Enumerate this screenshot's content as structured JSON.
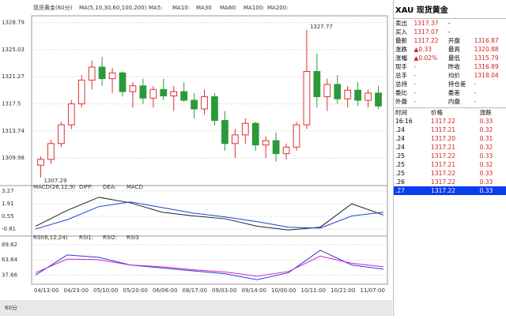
{
  "chart_data": [
    {
      "type": "candlestick",
      "title": "现货黄金(60分)",
      "ma_labels": [
        "MA(5,10,30,60,100,200)",
        "MA5:",
        "MA10:",
        "MA30",
        "MA60:",
        "MA100:",
        "MA200:"
      ],
      "ma_colors": [
        "#000",
        "#000",
        "#00f",
        "#f0f",
        "#f80",
        "#888",
        "#f00"
      ],
      "open": [
        1309.0,
        1309.8,
        1312.0,
        1314.6,
        1317.5,
        1320.8,
        1322.6,
        1321.0,
        1321.8,
        1319.2,
        1320.0,
        1318.3,
        1319.5,
        1318.6,
        1319.2,
        1318.0,
        1316.8,
        1318.5,
        1315.2,
        1312.0,
        1313.2,
        1314.8,
        1311.8,
        1312.4,
        1310.6,
        1311.5,
        1314.6,
        1322.0,
        1318.5,
        1320.2,
        1318.2,
        1319.4,
        1318.0,
        1319.0
      ],
      "high": [
        1310.2,
        1312.5,
        1315.0,
        1318.0,
        1321.5,
        1323.5,
        1324.0,
        1322.5,
        1322.0,
        1320.5,
        1321.0,
        1320.0,
        1321.0,
        1320.0,
        1320.5,
        1319.0,
        1319.5,
        1319.0,
        1316.5,
        1314.0,
        1315.5,
        1315.0,
        1313.0,
        1313.5,
        1312.0,
        1315.0,
        1327.77,
        1324.5,
        1321.0,
        1321.5,
        1320.0,
        1320.5,
        1319.5,
        1320.0
      ],
      "low": [
        1307.29,
        1309.2,
        1311.5,
        1314.0,
        1317.0,
        1319.5,
        1320.0,
        1319.0,
        1318.5,
        1317.0,
        1317.5,
        1317.0,
        1318.0,
        1316.5,
        1317.8,
        1315.5,
        1316.0,
        1314.5,
        1311.0,
        1310.0,
        1312.0,
        1311.0,
        1310.0,
        1309.5,
        1309.8,
        1311.0,
        1314.0,
        1317.0,
        1316.5,
        1317.5,
        1317.0,
        1317.2,
        1317.0,
        1316.8
      ],
      "close": [
        1309.8,
        1312.0,
        1314.6,
        1317.5,
        1320.8,
        1322.6,
        1321.0,
        1321.8,
        1319.2,
        1320.0,
        1318.3,
        1319.5,
        1318.6,
        1319.2,
        1318.0,
        1316.8,
        1318.5,
        1315.2,
        1312.0,
        1313.2,
        1314.8,
        1311.8,
        1312.4,
        1310.6,
        1311.5,
        1314.6,
        1322.0,
        1318.5,
        1320.2,
        1318.2,
        1319.4,
        1318.0,
        1319.0,
        1317.2
      ],
      "up_color": "#e03030",
      "down_color": "#2a9a3a",
      "annotations": [
        1327.77,
        1307.29
      ],
      "ylim": [
        1306.5,
        1329.5
      ],
      "yticks": [
        1328.79,
        1325.03,
        1321.27,
        1317.5,
        1313.74,
        1309.98
      ],
      "xtick_labels": [
        "04/13:00",
        "04/23:00",
        "05/10:00",
        "05/20:00",
        "06/06:00",
        "08/17:00",
        "09/03:00",
        "09/14:00",
        "10/00:00",
        "10/11:00",
        "10/21:00",
        "11/07:00"
      ]
    },
    {
      "type": "line",
      "title": "MACD(26,12,9)",
      "series": [
        {
          "name": "DIFF:",
          "color": "#222",
          "values": [
            -0.5,
            1.2,
            2.6,
            2.0,
            1.0,
            0.6,
            0.3,
            -0.5,
            -0.9,
            -0.6,
            1.9,
            0.7
          ]
        },
        {
          "name": "DEA:",
          "color": "#2040d0",
          "values": [
            -0.8,
            0.2,
            1.6,
            2.1,
            1.5,
            0.9,
            0.5,
            0.0,
            -0.6,
            -0.7,
            0.6,
            1.0
          ]
        },
        {
          "name": "MACD",
          "color": "#d020d0",
          "values": []
        }
      ],
      "ylim": [
        -1.3,
        3.6
      ],
      "yticks": [
        3.27,
        1.91,
        0.55,
        -0.81
      ]
    },
    {
      "type": "line",
      "title": "RSI(6,12,24)",
      "series": [
        {
          "name": "RSI1:",
          "color": "#2040d0",
          "values": [
            38,
            72,
            68,
            55,
            50,
            45,
            40,
            30,
            42,
            80,
            55,
            48
          ]
        },
        {
          "name": "RSI2:",
          "color": "#d020d0",
          "values": [
            42,
            65,
            64,
            55,
            52,
            47,
            43,
            36,
            44,
            70,
            58,
            52
          ]
        },
        {
          "name": "RSI3",
          "color": "#e08020",
          "values": []
        }
      ],
      "ylim": [
        25,
        100
      ],
      "yticks": [
        89.62,
        63.64,
        37.66
      ]
    }
  ],
  "tab": "60分",
  "quote": {
    "title": "XAU 现货黄金",
    "rows": [
      [
        "卖出",
        "1317.37",
        "-",
        ""
      ],
      [
        "买入",
        "1317.07",
        "-",
        ""
      ],
      [
        "最新",
        "1317.22",
        "开盘",
        "1316.87"
      ],
      [
        "涨跌",
        "▲0.33",
        "最高",
        "1320.88"
      ],
      [
        "涨幅",
        "▲0.02%",
        "最低",
        "1315.79"
      ],
      [
        "现手",
        "-",
        "昨收",
        "1316.89"
      ],
      [
        "总手",
        "-",
        "均价",
        "1318.04"
      ],
      [
        "总持",
        "-",
        "持仓差",
        "-"
      ],
      [
        "委比",
        "-",
        "委差",
        "-"
      ],
      [
        "外盘",
        "-",
        "内盘",
        "-"
      ]
    ],
    "trade_header": [
      "时间",
      "价格",
      "涨跌"
    ],
    "trades": [
      [
        "16:16",
        "1317.22",
        "0.33"
      ],
      [
        ".24",
        "1317.21",
        "0.32"
      ],
      [
        ".24",
        "1317.20",
        "0.31"
      ],
      [
        ".24",
        "1317.21",
        "0.32"
      ],
      [
        ".25",
        "1317.22",
        "0.33"
      ],
      [
        ".25",
        "1317.21",
        "0.32"
      ],
      [
        ".25",
        "1317.22",
        "0.33"
      ],
      [
        ".26",
        "1317.22",
        "0.33"
      ],
      [
        ".27",
        "1317.22",
        "0.33"
      ]
    ]
  }
}
